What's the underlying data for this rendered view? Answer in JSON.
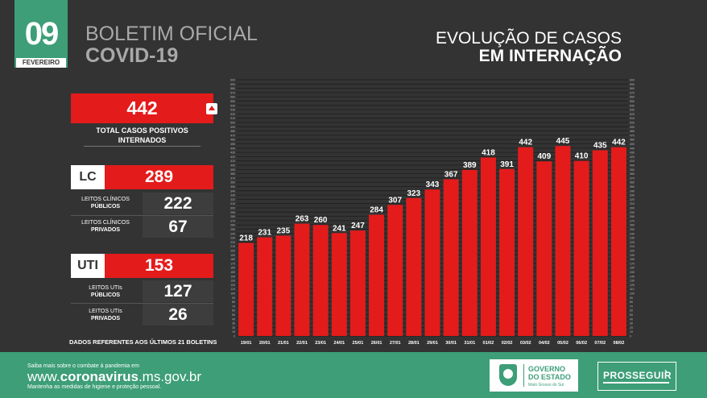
{
  "date": {
    "day": "09",
    "month": "FEVEREIRO"
  },
  "header": {
    "title_line1": "BOLETIM OFICIAL",
    "title_line2": "COVID-19",
    "chart_title_line1": "EVOLUÇÃO DE CASOS",
    "chart_title_line2": "EM INTERNAÇÃO"
  },
  "summary": {
    "total": "442",
    "total_label_line1": "TOTAL CASOS POSITIVOS",
    "total_label_line2": "INTERNADOS",
    "lc": {
      "tag": "LC",
      "value": "289",
      "public_label_line1": "LEITOS CLÍNICOS",
      "public_label_line2": "PÚBLICOS",
      "public_value": "222",
      "private_label_line1": "LEITOS CLÍNICOS",
      "private_label_line2": "PRIVADOS",
      "private_value": "67"
    },
    "uti": {
      "tag": "UTI",
      "value": "153",
      "public_label_line1": "LEITOS UTIs",
      "public_label_line2": "PÚBLICOS",
      "public_value": "127",
      "private_label_line1": "LEITOS UTIs",
      "private_label_line2": "PRIVADOS",
      "private_value": "26"
    },
    "note": "DADOS REFERENTES AOS ÚLTIMOS 21 BOLETINS"
  },
  "footer": {
    "line1": "Saiba mais sobre o combate à pandemia em",
    "url_prefix": "www.",
    "url_bold": "coronavirus",
    "url_suffix": ".ms.gov.br",
    "line3": "Mantenha as medidas de higiene e proteção pessoal.",
    "gov_line1": "GOVERNO",
    "gov_line2": "DO ESTADO",
    "gov_sub": "Mato Grosso do Sul",
    "prosseguir": "PROSSEGUIR"
  },
  "colors": {
    "bar": "#e41b1b",
    "accent": "#3d9e78",
    "background": "#333333"
  },
  "chart_data": {
    "type": "bar",
    "title": "EVOLUÇÃO DE CASOS EM INTERNAÇÃO",
    "categories": [
      "19/01",
      "20/01",
      "21/01",
      "22/01",
      "23/01",
      "24/01",
      "25/01",
      "26/01",
      "27/01",
      "28/01",
      "29/01",
      "30/01",
      "31/01",
      "01/02",
      "02/02",
      "03/02",
      "04/02",
      "05/02",
      "06/02",
      "07/02",
      "08/02"
    ],
    "values": [
      218,
      231,
      235,
      263,
      260,
      241,
      247,
      284,
      307,
      323,
      343,
      367,
      389,
      418,
      391,
      442,
      409,
      445,
      410,
      435,
      442
    ],
    "ylim": [
      0,
      600
    ],
    "grid": true
  }
}
